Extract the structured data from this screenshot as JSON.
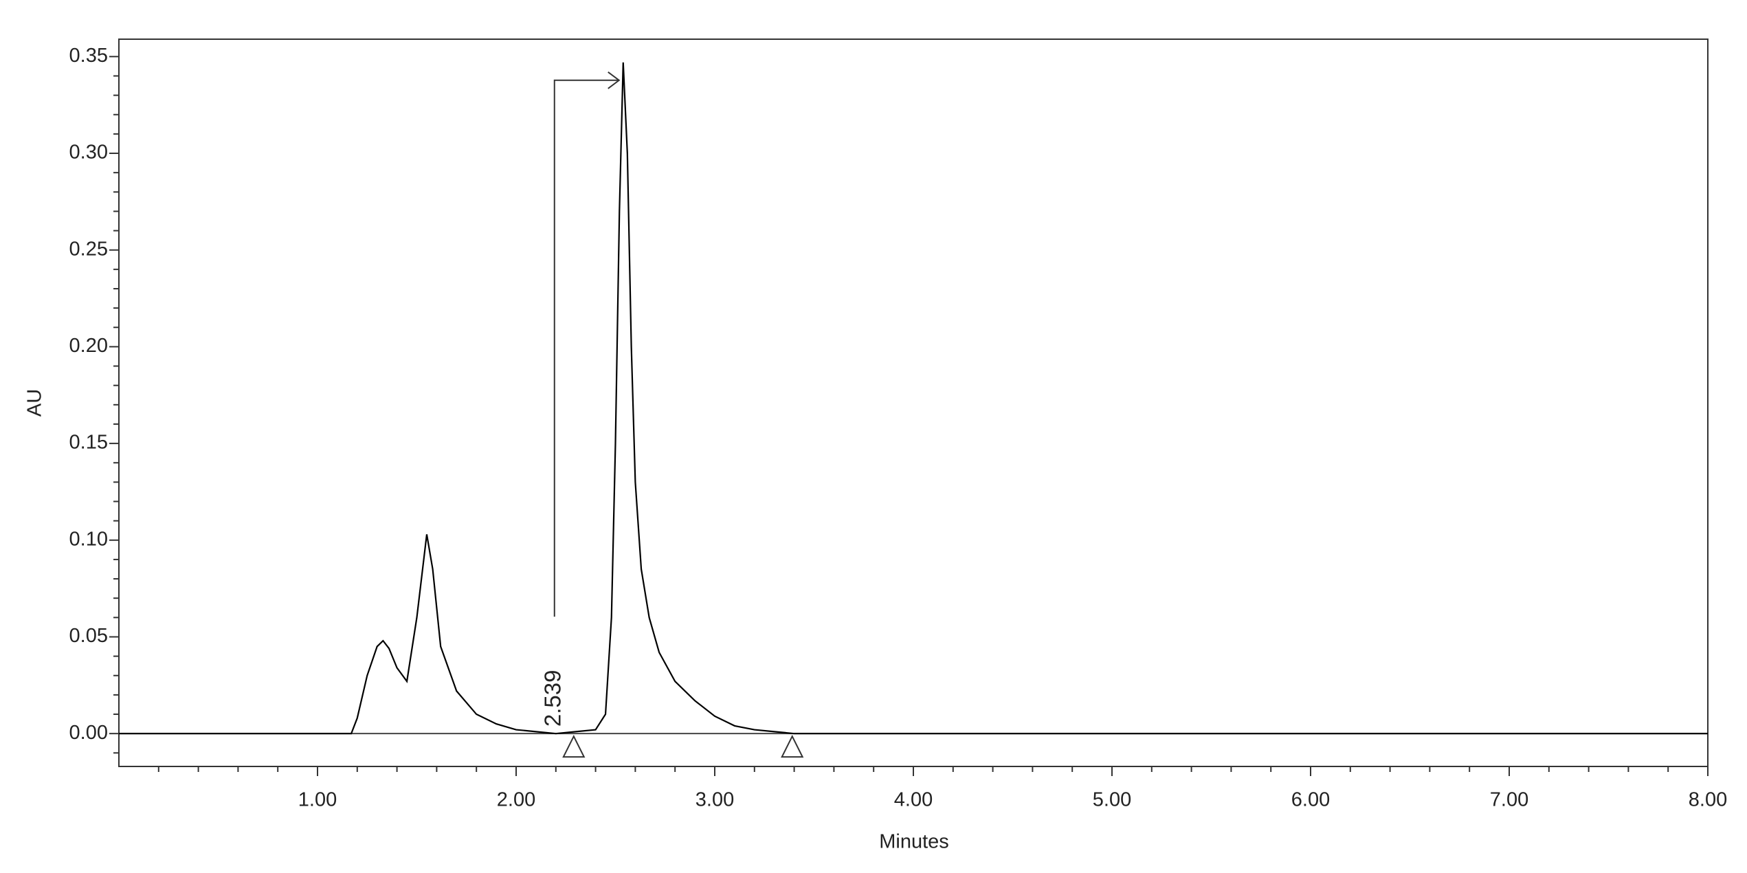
{
  "chart_data": {
    "type": "line",
    "x_label": "Minutes",
    "y_label": "AU",
    "color": "#000000",
    "x": [
      0,
      1.0,
      1.17,
      1.2,
      1.25,
      1.3,
      1.33,
      1.36,
      1.4,
      1.45,
      1.5,
      1.55,
      1.58,
      1.62,
      1.7,
      1.8,
      1.9,
      2.0,
      2.1,
      2.2,
      2.3,
      2.4,
      2.45,
      2.48,
      2.5,
      2.52,
      2.539,
      2.56,
      2.58,
      2.6,
      2.63,
      2.67,
      2.72,
      2.8,
      2.9,
      3.0,
      3.1,
      3.2,
      3.3,
      3.4,
      3.6,
      8.0
    ],
    "values": [
      0,
      0,
      0,
      0.008,
      0.03,
      0.045,
      0.048,
      0.044,
      0.034,
      0.027,
      0.06,
      0.103,
      0.085,
      0.045,
      0.022,
      0.01,
      0.005,
      0.002,
      0.001,
      0,
      0.001,
      0.002,
      0.01,
      0.06,
      0.15,
      0.27,
      0.347,
      0.3,
      0.2,
      0.13,
      0.085,
      0.06,
      0.042,
      0.027,
      0.017,
      0.009,
      0.004,
      0.002,
      0.001,
      0,
      0,
      0
    ],
    "annotations": [
      {
        "text": "2.539",
        "x": 2.539,
        "y": 0.347
      }
    ],
    "peak_bounds": [
      2.29,
      3.39
    ],
    "xlim": [
      0,
      8
    ],
    "ylim": [
      -0.017,
      0.359
    ],
    "xticks": [
      {
        "value": 1,
        "label": "1.00"
      },
      {
        "value": 2,
        "label": "2.00"
      },
      {
        "value": 3,
        "label": "3.00"
      },
      {
        "value": 4,
        "label": "4.00"
      },
      {
        "value": 5,
        "label": "5.00"
      },
      {
        "value": 6,
        "label": "6.00"
      },
      {
        "value": 7,
        "label": "7.00"
      },
      {
        "value": 8,
        "label": "8.00"
      }
    ],
    "xminorticks": [
      0.2,
      0.4,
      0.6,
      0.8,
      1.2,
      1.4,
      1.6,
      1.8,
      2.2,
      2.4,
      2.6,
      2.8,
      3.2,
      3.4,
      3.6,
      3.8,
      4.2,
      4.4,
      4.6,
      4.8,
      5.2,
      5.4,
      5.6,
      5.8,
      6.2,
      6.4,
      6.6,
      6.8,
      7.2,
      7.4,
      7.6,
      7.8
    ],
    "yticks": [
      {
        "value": 0,
        "label": "0.00"
      },
      {
        "value": 0.05,
        "label": "0.05"
      },
      {
        "value": 0.1,
        "label": "0.10"
      },
      {
        "value": 0.15,
        "label": "0.15"
      },
      {
        "value": 0.2,
        "label": "0.20"
      },
      {
        "value": 0.25,
        "label": "0.25"
      },
      {
        "value": 0.3,
        "label": "0.30"
      },
      {
        "value": 0.35,
        "label": "0.35"
      }
    ],
    "yminorticks": [
      -0.01,
      0.01,
      0.02,
      0.03,
      0.04,
      0.06,
      0.07,
      0.08,
      0.09,
      0.11,
      0.12,
      0.13,
      0.14,
      0.16,
      0.17,
      0.18,
      0.19,
      0.21,
      0.22,
      0.23,
      0.24,
      0.26,
      0.27,
      0.28,
      0.29,
      0.31,
      0.32,
      0.33,
      0.34
    ]
  }
}
